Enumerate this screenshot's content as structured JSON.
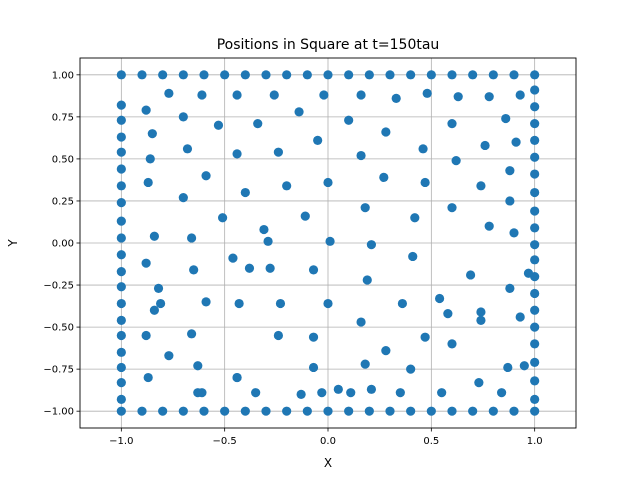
{
  "chart_data": {
    "type": "scatter",
    "title": "Positions in Square at t=150tau",
    "xlabel": "X",
    "ylabel": "Y",
    "xlim": [
      -1.2,
      1.2
    ],
    "ylim": [
      -1.1,
      1.1
    ],
    "xticks": [
      -1.0,
      -0.5,
      0.0,
      0.5,
      1.0
    ],
    "xtick_labels": [
      "−1.0",
      "−0.5",
      "0.0",
      "0.5",
      "1.0"
    ],
    "yticks": [
      -1.0,
      -0.75,
      -0.5,
      -0.25,
      0.0,
      0.25,
      0.5,
      0.75,
      1.0
    ],
    "ytick_labels": [
      "−1.00",
      "−0.75",
      "−0.50",
      "−0.25",
      "0.00",
      "0.25",
      "0.50",
      "0.75",
      "1.00"
    ],
    "grid": true,
    "marker_color": "#1f77b4",
    "series": [
      {
        "x": [
          -1.0,
          -0.9,
          -0.8,
          -0.7,
          -0.6,
          -0.5,
          -0.4,
          -0.3,
          -0.2,
          -0.1,
          0.0,
          0.1,
          0.2,
          0.3,
          0.4,
          0.5,
          0.6,
          0.7,
          0.8,
          0.9,
          1.0,
          -1.0,
          -0.9,
          -0.8,
          -0.7,
          -0.6,
          -0.5,
          -0.4,
          -0.3,
          -0.2,
          -0.1,
          0.0,
          0.1,
          0.2,
          0.3,
          0.4,
          0.5,
          0.6,
          0.7,
          0.8,
          0.9,
          1.0,
          -1.0,
          -1.0,
          -1.0,
          -1.0,
          -1.0,
          -1.0,
          -1.0,
          -1.0,
          -1.0,
          -1.0,
          -1.0,
          -1.0,
          -1.0,
          -1.0,
          -1.0,
          -1.0,
          -1.0,
          -1.0,
          -1.0,
          1.0,
          1.0,
          1.0,
          1.0,
          1.0,
          1.0,
          1.0,
          1.0,
          1.0,
          1.0,
          1.0,
          1.0,
          1.0,
          1.0,
          1.0,
          1.0,
          1.0,
          1.0,
          1.0,
          -0.77,
          -0.61,
          -0.44,
          -0.26,
          -0.02,
          0.16,
          0.33,
          0.48,
          0.63,
          0.78,
          0.93,
          -0.88,
          -0.7,
          -0.53,
          -0.34,
          -0.14,
          0.1,
          0.28,
          0.6,
          0.86,
          -0.85,
          -0.68,
          -0.44,
          -0.24,
          -0.05,
          0.16,
          0.46,
          0.76,
          0.91,
          -0.86,
          -0.59,
          -0.4,
          -0.2,
          0.0,
          0.27,
          0.47,
          0.62,
          0.74,
          0.88,
          -0.87,
          -0.7,
          -0.51,
          -0.31,
          -0.11,
          0.18,
          0.42,
          0.6,
          0.88,
          -0.84,
          -0.66,
          -0.29,
          0.01,
          0.21,
          0.78,
          0.9,
          -0.88,
          -0.65,
          -0.46,
          -0.28,
          -0.07,
          0.19,
          0.41,
          0.69,
          0.97,
          -0.82,
          -0.38,
          -0.81,
          -0.59,
          -0.43,
          -0.23,
          0.0,
          0.36,
          0.54,
          0.74,
          0.88,
          -0.84,
          -0.66,
          -0.24,
          -0.07,
          0.16,
          0.47,
          0.58,
          0.74,
          0.93,
          -0.88,
          -0.63,
          -0.44,
          -0.07,
          0.18,
          0.28,
          0.4,
          0.6,
          0.95,
          -0.87,
          -0.63,
          -0.44,
          -0.03,
          0.11,
          0.73,
          0.87,
          -0.77,
          -0.61,
          -0.35,
          -0.13,
          0.05,
          0.21,
          0.35,
          0.55,
          0.84
        ],
        "y": [
          1.0,
          1.0,
          1.0,
          1.0,
          1.0,
          1.0,
          1.0,
          1.0,
          1.0,
          1.0,
          1.0,
          1.0,
          1.0,
          1.0,
          1.0,
          1.0,
          1.0,
          1.0,
          1.0,
          1.0,
          1.0,
          -1.0,
          -1.0,
          -1.0,
          -1.0,
          -1.0,
          -1.0,
          -1.0,
          -1.0,
          -1.0,
          -1.0,
          -1.0,
          -1.0,
          -1.0,
          -1.0,
          -1.0,
          -1.0,
          -1.0,
          -1.0,
          -1.0,
          -1.0,
          -1.0,
          -0.93,
          -0.83,
          -0.74,
          -0.65,
          -0.55,
          -0.46,
          -0.36,
          -0.26,
          -0.17,
          -0.07,
          0.03,
          0.13,
          0.24,
          0.34,
          0.44,
          0.54,
          0.63,
          0.73,
          0.82,
          -0.93,
          -0.82,
          -0.71,
          -0.6,
          -0.5,
          -0.4,
          -0.3,
          -0.2,
          -0.1,
          -0.01,
          0.09,
          0.19,
          0.3,
          0.41,
          0.51,
          0.61,
          0.71,
          0.81,
          0.91,
          0.89,
          0.88,
          0.88,
          0.88,
          0.88,
          0.88,
          0.86,
          0.89,
          0.87,
          0.87,
          0.88,
          0.79,
          0.75,
          0.7,
          0.71,
          0.78,
          0.73,
          0.66,
          0.71,
          0.74,
          0.65,
          0.56,
          0.53,
          0.54,
          0.61,
          0.52,
          0.56,
          0.58,
          0.6,
          0.5,
          0.4,
          0.3,
          0.34,
          0.36,
          0.39,
          0.36,
          0.49,
          0.34,
          0.43,
          0.36,
          0.27,
          0.15,
          0.08,
          0.16,
          0.21,
          0.15,
          0.21,
          0.25,
          0.04,
          0.03,
          0.01,
          0.01,
          -0.01,
          0.1,
          0.06,
          -0.12,
          -0.16,
          -0.09,
          -0.15,
          -0.16,
          -0.22,
          -0.08,
          -0.19,
          -0.18,
          -0.27,
          -0.15,
          -0.36,
          -0.35,
          -0.36,
          -0.36,
          -0.36,
          -0.36,
          -0.33,
          -0.41,
          -0.27,
          -0.4,
          -0.54,
          -0.55,
          -0.56,
          -0.47,
          -0.56,
          -0.42,
          -0.46,
          -0.44,
          -0.55,
          -0.73,
          -0.8,
          -0.74,
          -0.72,
          -0.64,
          -0.75,
          -0.6,
          -0.73,
          -0.8,
          -0.89,
          -0.8,
          -0.89,
          -0.89,
          -0.83,
          -0.74,
          -0.67,
          -0.89,
          -0.89,
          -0.9,
          -0.87,
          -0.87,
          -0.89,
          -0.89,
          -0.89
        ]
      }
    ]
  }
}
